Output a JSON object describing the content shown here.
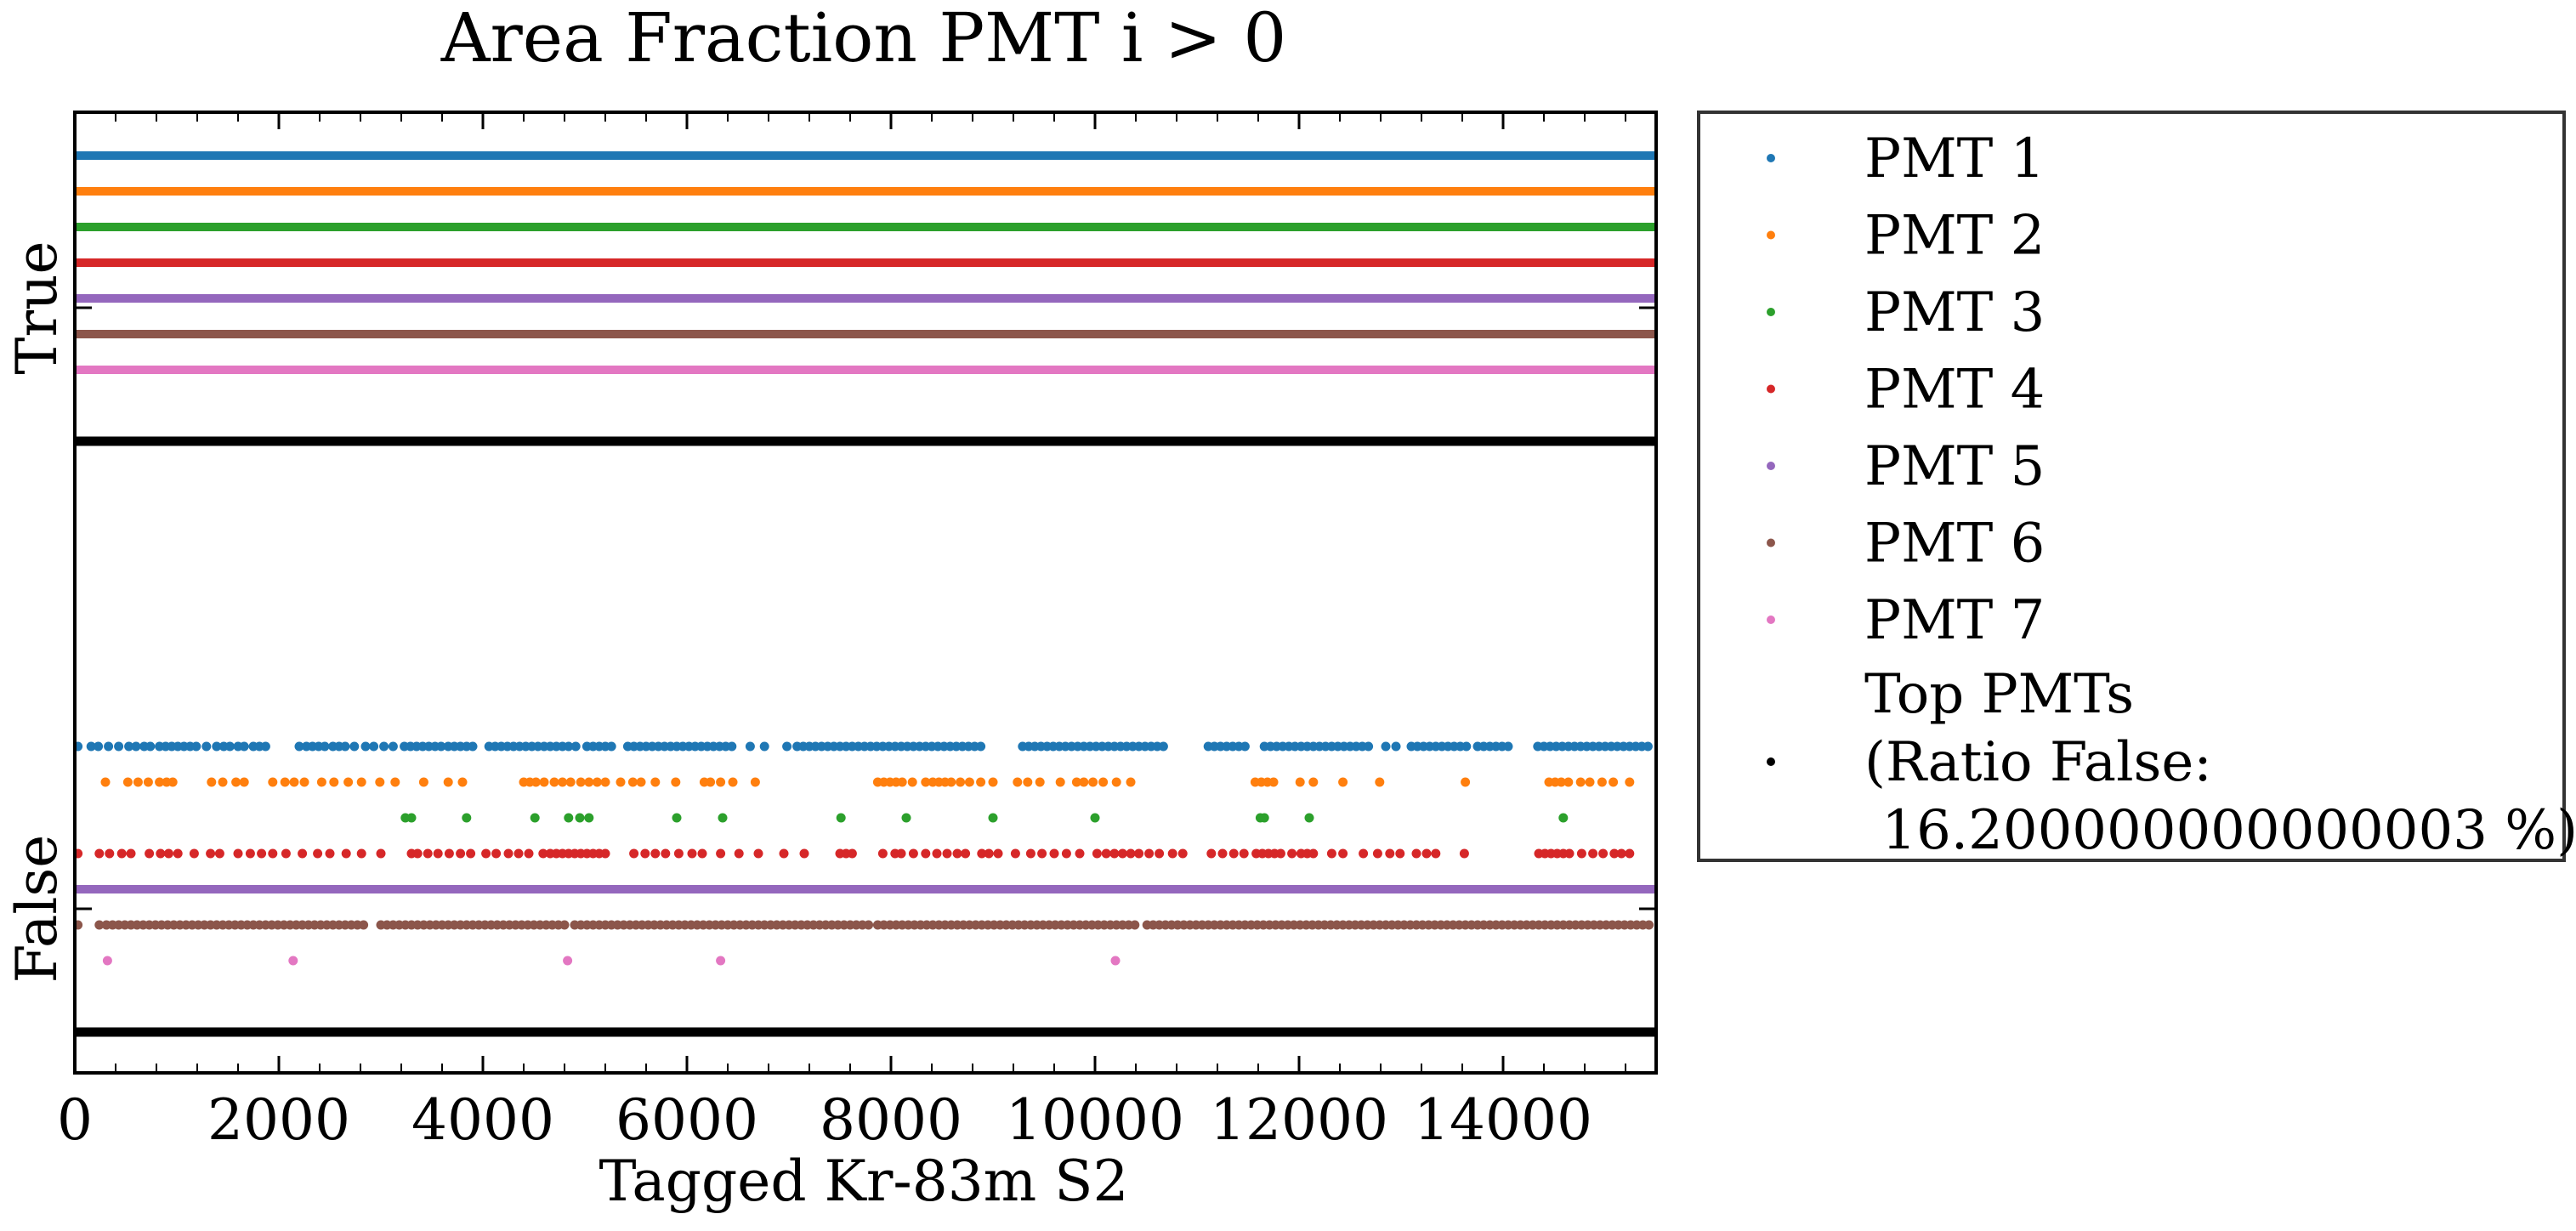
{
  "chart_data": {
    "type": "scatter",
    "title": "Area Fraction PMT i > 0",
    "xlabel": "Tagged Kr-83m S2",
    "ylabel": "",
    "xlim": [
      0,
      15500
    ],
    "x_ticks": [
      0,
      2000,
      4000,
      6000,
      8000,
      10000,
      12000,
      14000
    ],
    "x_tick_labels": [
      "0",
      "2000",
      "4000",
      "6000",
      "8000",
      "10000",
      "12000",
      "14000"
    ],
    "y_categories": [
      "False",
      "True"
    ],
    "grid": false,
    "legend_position": "outside-right",
    "series": [
      {
        "name": "PMT 1",
        "color": "#1f77b4",
        "true_continuous": true,
        "false_points": [
          30,
          160,
          230,
          330,
          430,
          530,
          600,
          680,
          740,
          830,
          890,
          950,
          1010,
          1070,
          1130,
          1190,
          1290,
          1390,
          1460,
          1520,
          1600,
          1660,
          1750,
          1810,
          1870,
          2200,
          2270,
          2330,
          2390,
          2450,
          2530,
          2590,
          2650,
          2740,
          2850,
          2930,
          3030,
          3120,
          3230,
          3290,
          3350,
          3410,
          3470,
          3530,
          3590,
          3660,
          3720,
          3780,
          3840,
          3900,
          4060,
          4120,
          4180,
          4240,
          4300,
          4360,
          4420,
          4480,
          4540,
          4600,
          4660,
          4720,
          4780,
          4840,
          4910,
          5020,
          5080,
          5140,
          5200,
          5260,
          5420,
          5480,
          5540,
          5600,
          5660,
          5720,
          5780,
          5840,
          5900,
          5960,
          6020,
          6080,
          6140,
          6200,
          6260,
          6320,
          6380,
          6440,
          6620,
          6760,
          6980,
          7080,
          7140,
          7200,
          7260,
          7320,
          7380,
          7440,
          7500,
          7560,
          7620,
          7680,
          7740,
          7800,
          7860,
          7920,
          7980,
          8040,
          8100,
          8160,
          8220,
          8280,
          8340,
          8400,
          8460,
          8520,
          8580,
          8640,
          8700,
          8760,
          8820,
          8880,
          9290,
          9350,
          9410,
          9470,
          9530,
          9590,
          9650,
          9710,
          9770,
          9830,
          9890,
          9950,
          10010,
          10070,
          10130,
          10190,
          10250,
          10310,
          10370,
          10430,
          10490,
          10550,
          10610,
          10670,
          11110,
          11170,
          11230,
          11290,
          11350,
          11410,
          11470,
          11660,
          11720,
          11780,
          11840,
          11900,
          11960,
          12020,
          12080,
          12140,
          12200,
          12260,
          12320,
          12380,
          12440,
          12500,
          12560,
          12620,
          12680,
          12850,
          12950,
          13100,
          13160,
          13220,
          13280,
          13340,
          13400,
          13460,
          13520,
          13580,
          13640,
          13750,
          13810,
          13870,
          13930,
          13990,
          14050,
          14340,
          14400,
          14460,
          14520,
          14580,
          14640,
          14700,
          14760,
          14820,
          14880,
          14940,
          15000,
          15060,
          15120,
          15180,
          15240,
          15300,
          15360,
          15420
        ]
      },
      {
        "name": "PMT 2",
        "color": "#ff7f0e",
        "true_continuous": true,
        "false_points": [
          300,
          520,
          620,
          720,
          830,
          900,
          960,
          1340,
          1450,
          1580,
          1660,
          1940,
          2060,
          2150,
          2250,
          2420,
          2540,
          2680,
          2810,
          2990,
          3140,
          3420,
          3660,
          3800,
          4400,
          4460,
          4520,
          4600,
          4700,
          4780,
          4860,
          4960,
          5040,
          5120,
          5200,
          5350,
          5470,
          5550,
          5690,
          5890,
          6170,
          6230,
          6330,
          6450,
          6670,
          7870,
          7930,
          7990,
          8050,
          8110,
          8210,
          8340,
          8410,
          8470,
          8530,
          8590,
          8680,
          8770,
          8880,
          9000,
          9240,
          9340,
          9460,
          9660,
          9820,
          9890,
          9980,
          10080,
          10210,
          10350,
          11570,
          11630,
          11690,
          11750,
          12010,
          12140,
          12430,
          12790,
          13630,
          14450,
          14510,
          14570,
          14640,
          14760,
          14850,
          14970,
          15080,
          15240
        ]
      },
      {
        "name": "PMT 3",
        "color": "#2ca02c",
        "true_continuous": true,
        "false_points": [
          3240,
          3300,
          3840,
          4510,
          4840,
          4950,
          5040,
          5900,
          6350,
          7510,
          8150,
          9000,
          10000,
          11620,
          11660,
          12100,
          14590
        ]
      },
      {
        "name": "PMT 4",
        "color": "#d62728",
        "true_continuous": true,
        "false_points": [
          30,
          240,
          340,
          460,
          550,
          730,
          840,
          920,
          1010,
          1170,
          1330,
          1420,
          1600,
          1720,
          1830,
          1940,
          2070,
          2230,
          2380,
          2500,
          2660,
          2810,
          3000,
          3300,
          3360,
          3460,
          3560,
          3670,
          3780,
          3880,
          4030,
          4130,
          4250,
          4350,
          4450,
          4590,
          4660,
          4720,
          4780,
          4840,
          4900,
          4960,
          5020,
          5080,
          5140,
          5200,
          5480,
          5590,
          5690,
          5790,
          5920,
          6050,
          6150,
          6330,
          6510,
          6700,
          6950,
          7150,
          7500,
          7560,
          7620,
          7920,
          8040,
          8100,
          8220,
          8340,
          8450,
          8550,
          8650,
          8730,
          8890,
          8960,
          9050,
          9220,
          9370,
          9480,
          9600,
          9720,
          9850,
          10020,
          10110,
          10190,
          10270,
          10350,
          10430,
          10530,
          10630,
          10760,
          10860,
          11140,
          11250,
          11360,
          11460,
          11580,
          11640,
          11700,
          11760,
          11820,
          11930,
          12020,
          12080,
          12140,
          12320,
          12430,
          12630,
          12770,
          12890,
          12990,
          13150,
          13250,
          13340,
          13620,
          14350,
          14410,
          14470,
          14530,
          14590,
          14650,
          14770,
          14880,
          14980,
          15090,
          15160,
          15240
        ]
      },
      {
        "name": "PMT 5",
        "color": "#9467bd",
        "true_continuous": true,
        "false_continuous": true
      },
      {
        "name": "PMT 6",
        "color": "#8c564b",
        "true_continuous": true,
        "false_points": [
          30,
          240,
          310,
          370,
          430,
          490,
          550,
          610,
          670,
          730,
          790,
          850,
          910,
          970,
          1030,
          1090,
          1150,
          1210,
          1270,
          1330,
          1390,
          1450,
          1510,
          1570,
          1630,
          1690,
          1750,
          1810,
          1870,
          1930,
          1990,
          2050,
          2110,
          2170,
          2230,
          2290,
          2350,
          2410,
          2470,
          2530,
          2590,
          2650,
          2710,
          2770,
          2830,
          3000,
          3060,
          3120,
          3180,
          3240,
          3300,
          3360,
          3420,
          3480,
          3540,
          3600,
          3660,
          3720,
          3780,
          3840,
          3900,
          3960,
          4020,
          4080,
          4140,
          4200,
          4260,
          4320,
          4380,
          4440,
          4500,
          4560,
          4620,
          4680,
          4740,
          4800,
          4900,
          4960,
          5020,
          5080,
          5140,
          5200,
          5260,
          5320,
          5380,
          5440,
          5500,
          5560,
          5620,
          5680,
          5740,
          5800,
          5860,
          5920,
          5980,
          6040,
          6100,
          6160,
          6220,
          6280,
          6340,
          6400,
          6460,
          6520,
          6580,
          6640,
          6700,
          6760,
          6820,
          6880,
          6940,
          7000,
          7060,
          7120,
          7180,
          7240,
          7300,
          7360,
          7420,
          7480,
          7540,
          7600,
          7660,
          7720,
          7780,
          7870,
          7930,
          7990,
          8050,
          8110,
          8170,
          8230,
          8290,
          8350,
          8410,
          8470,
          8530,
          8590,
          8650,
          8710,
          8770,
          8830,
          8890,
          8950,
          9010,
          9070,
          9130,
          9190,
          9250,
          9310,
          9370,
          9430,
          9490,
          9550,
          9610,
          9670,
          9730,
          9790,
          9850,
          9910,
          9970,
          10030,
          10090,
          10150,
          10210,
          10270,
          10330,
          10390,
          10510,
          10570,
          10630,
          10690,
          10750,
          10810,
          10870,
          10930,
          10990,
          11050,
          11110,
          11170,
          11230,
          11290,
          11350,
          11410,
          11470,
          11530,
          11590,
          11650,
          11710,
          11770,
          11830,
          11890,
          11950,
          12010,
          12070,
          12130,
          12190,
          12250,
          12310,
          12370,
          12430,
          12490,
          12550,
          12610,
          12670,
          12730,
          12790,
          12850,
          12910,
          12970,
          13030,
          13090,
          13150,
          13210,
          13270,
          13330,
          13390,
          13450,
          13510,
          13570,
          13630,
          13690,
          13750,
          13810,
          13870,
          13930,
          13990,
          14050,
          14110,
          14170,
          14230,
          14290,
          14350,
          14410,
          14470,
          14530,
          14590,
          14650,
          14710,
          14770,
          14830,
          14890,
          14950,
          15010,
          15070,
          15130,
          15190,
          15250,
          15310,
          15370,
          15430
        ]
      },
      {
        "name": "PMT 7",
        "color": "#e377c2",
        "true_continuous": true,
        "false_points": [
          320,
          2140,
          4830,
          6330,
          10200
        ]
      },
      {
        "name": "Top PMTs\n(Ratio False:\n 16.200000000000003 %)",
        "color": "#000000",
        "true_continuous": true,
        "false_continuous": true
      }
    ]
  }
}
